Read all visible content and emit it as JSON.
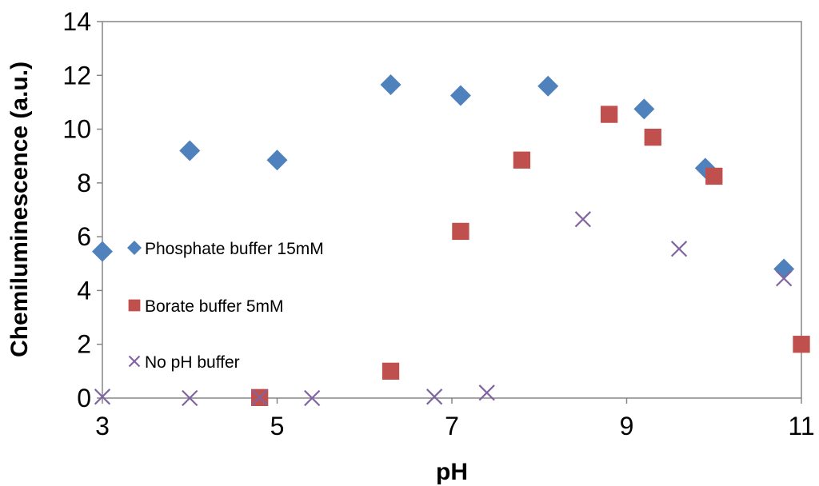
{
  "chart_data": {
    "type": "scatter",
    "title": "",
    "xlabel": "pH",
    "ylabel": "Chemiluminescence (a.u.)",
    "xlim": [
      3,
      11
    ],
    "ylim": [
      0,
      14
    ],
    "xticks": [
      3,
      5,
      7,
      9,
      11
    ],
    "yticks": [
      0,
      2,
      4,
      6,
      8,
      10,
      12,
      14
    ],
    "grid": false,
    "legend_position": "left-middle",
    "series": [
      {
        "name": "Phosphate buffer 15mM",
        "marker": "diamond",
        "color": "#4F81BD",
        "x": [
          3.0,
          4.0,
          5.0,
          6.3,
          7.1,
          8.1,
          9.2,
          9.9,
          10.8
        ],
        "y": [
          5.45,
          9.2,
          8.85,
          11.65,
          11.25,
          11.6,
          10.75,
          8.55,
          4.8
        ]
      },
      {
        "name": "Borate buffer 5mM",
        "marker": "square",
        "color": "#C0504D",
        "x": [
          4.8,
          6.3,
          7.1,
          7.8,
          8.8,
          9.3,
          10.0,
          11.0
        ],
        "y": [
          0.02,
          1.0,
          6.2,
          8.85,
          10.55,
          9.7,
          8.25,
          2.0
        ]
      },
      {
        "name": "No pH buffer",
        "marker": "x",
        "color": "#8064A2",
        "x": [
          3.0,
          4.0,
          4.8,
          5.4,
          6.8,
          7.4,
          8.5,
          9.6,
          10.8
        ],
        "y": [
          0.05,
          0.0,
          0.02,
          0.0,
          0.05,
          0.2,
          6.65,
          5.55,
          4.45
        ]
      }
    ]
  }
}
